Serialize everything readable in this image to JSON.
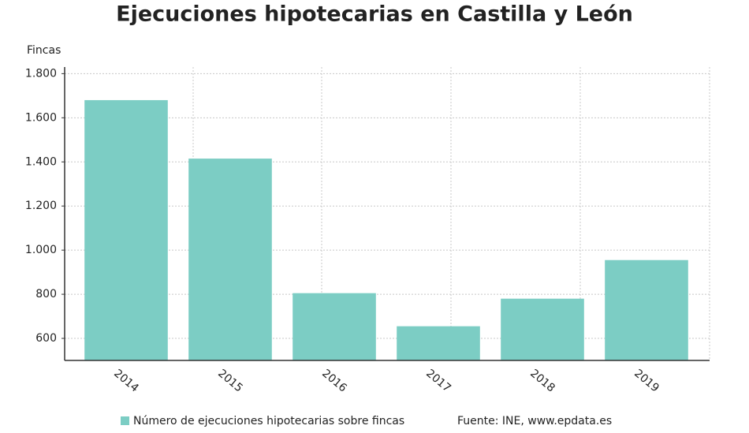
{
  "chart_data": {
    "type": "bar",
    "title": "Ejecuciones hipotecarias en Castilla y León",
    "y_label": "Fincas",
    "categories": [
      "2014",
      "2015",
      "2016",
      "2017",
      "2018",
      "2019"
    ],
    "series": [
      {
        "name": "Número de ejecuciones hipotecarias sobre fincas",
        "color": "#7ccdc4",
        "values": [
          1680,
          1415,
          805,
          655,
          780,
          955
        ]
      }
    ],
    "ylim": [
      500,
      1830
    ],
    "yticks": [
      600,
      800,
      {
        "value": 1000,
        "label": "1.000"
      },
      {
        "value": 1200,
        "label": "1.200"
      },
      {
        "value": 1400,
        "label": "1.400"
      },
      {
        "value": 1600,
        "label": "1.600"
      },
      {
        "value": 1800,
        "label": "1.800"
      }
    ],
    "grid": true,
    "source": "Fuente: INE, www.epdata.es"
  }
}
